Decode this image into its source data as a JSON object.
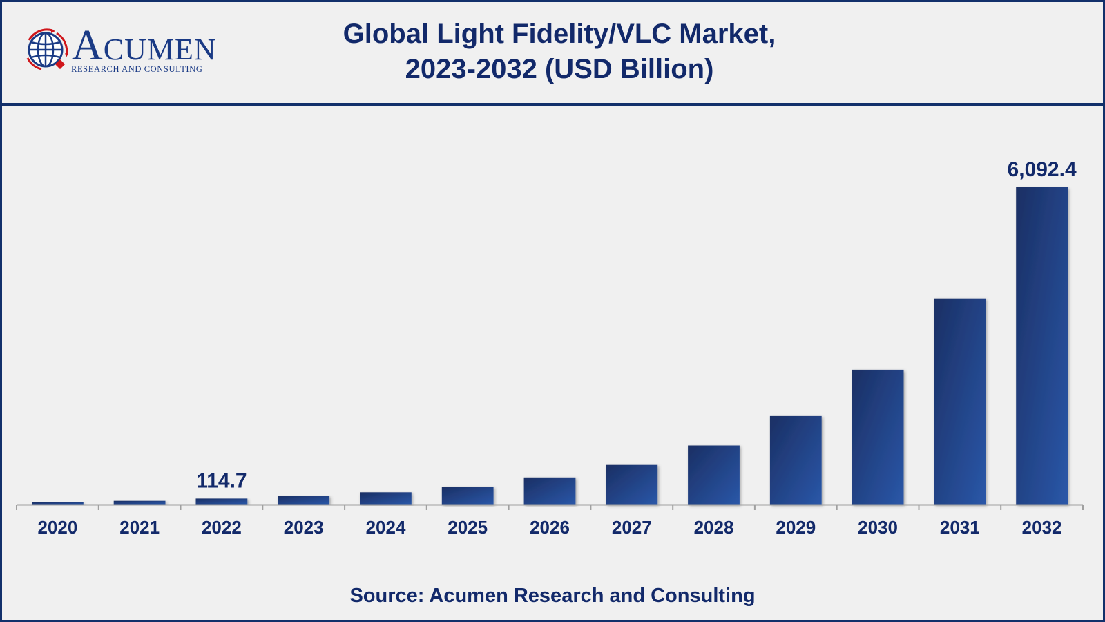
{
  "logo": {
    "name": "Acumen",
    "name_first": "A",
    "name_rest": "CUMEN",
    "tagline": "RESEARCH AND CONSULTING"
  },
  "title": {
    "line1": "Global Light Fidelity/VLC Market,",
    "line2": "2023-2032 (USD Billion)"
  },
  "source": "Source: Acumen Research and Consulting",
  "colors": {
    "bar_dark": "#1b2f64",
    "bar_light": "#2a57a8",
    "text": "#12296a",
    "border": "#12306b",
    "axis": "#a0a0a0",
    "logo_red": "#d0161b"
  },
  "chart_data": {
    "type": "bar",
    "title": "Global Light Fidelity/VLC Market, 2023-2032 (USD Billion)",
    "xlabel": "",
    "ylabel": "USD Billion",
    "categories": [
      "2020",
      "2021",
      "2022",
      "2023",
      "2024",
      "2025",
      "2026",
      "2027",
      "2028",
      "2029",
      "2030",
      "2031",
      "2032"
    ],
    "values": [
      40,
      70,
      114.7,
      170,
      235,
      345,
      520,
      760,
      1135,
      1700,
      2590,
      3960,
      6092.4
    ],
    "data_labels": [
      {
        "index": 2,
        "text": "114.7"
      },
      {
        "index": 12,
        "text": "6,092.4"
      }
    ],
    "ylim": [
      0,
      6092.4
    ],
    "grid": false,
    "legend": "none"
  }
}
